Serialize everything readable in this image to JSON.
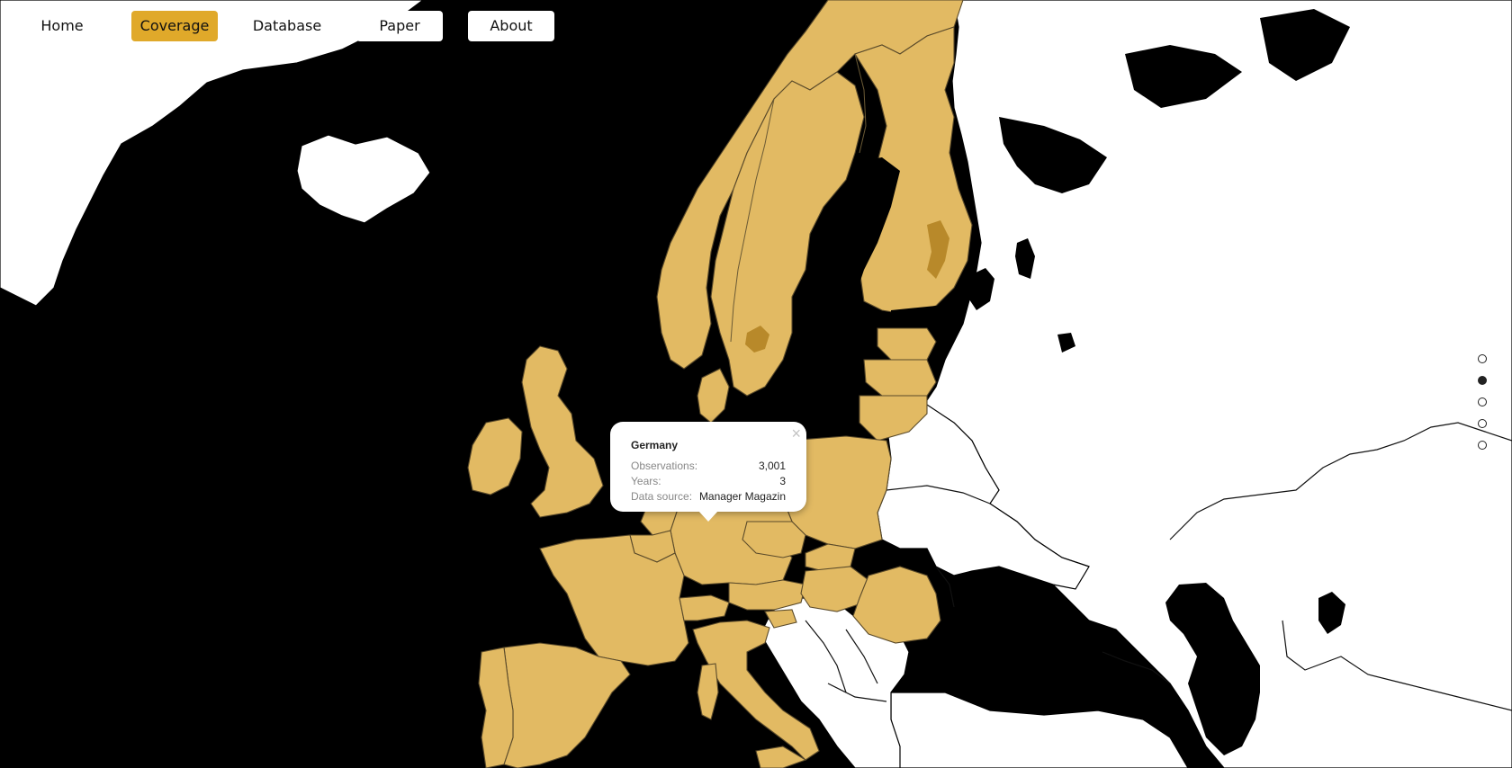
{
  "nav": {
    "items": [
      {
        "label": "Home",
        "active": false
      },
      {
        "label": "Coverage",
        "active": true
      },
      {
        "label": "Database",
        "active": false
      },
      {
        "label": "Paper",
        "active": false
      },
      {
        "label": "About",
        "active": false
      }
    ]
  },
  "map": {
    "highlight_color": "#e2ba63",
    "background_color": "#000000",
    "land_color": "#ffffff",
    "covered_region": "Europe"
  },
  "popup": {
    "title": "Germany",
    "close_icon": "close-icon",
    "rows": [
      {
        "key": "Observations:",
        "value": "3,001"
      },
      {
        "key": "Years:",
        "value": "3"
      },
      {
        "key": "Data source:",
        "value": "Manager Magazin"
      }
    ]
  },
  "pager": {
    "count": 5,
    "active_index": 1
  }
}
